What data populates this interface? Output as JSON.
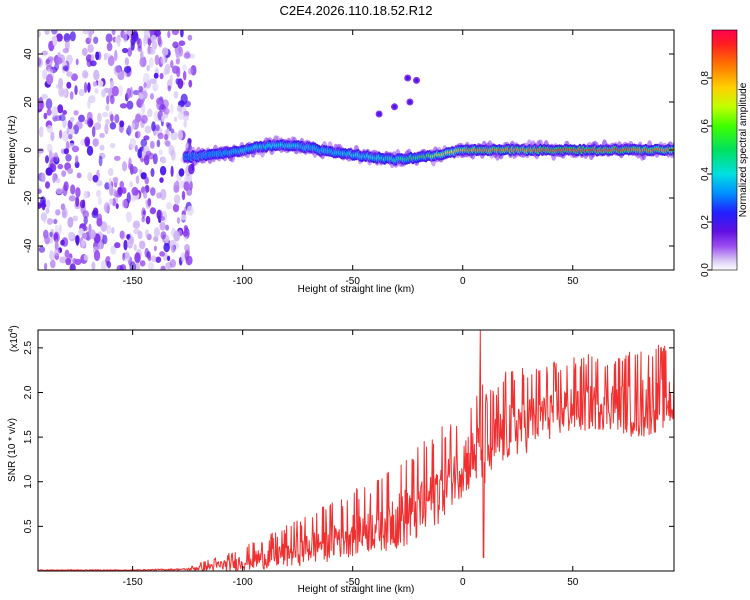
{
  "title": "C2E4.2026.110.18.52.R12",
  "chart_data": [
    {
      "id": "spectrogram",
      "type": "heatmap",
      "xlabel": "Height of straight line (km)",
      "ylabel": "Frequency (Hz)",
      "xlim": [
        -193,
        96
      ],
      "ylim": [
        -50,
        50
      ],
      "xticks": [
        -150,
        -100,
        -50,
        0,
        50
      ],
      "yticks": [
        -40,
        -20,
        0,
        20,
        40
      ],
      "noise_region_x": [
        -193,
        -125
      ],
      "main_signal": {
        "x": [
          -126,
          -115,
          -105,
          -95,
          -85,
          -78,
          -70,
          -60,
          -50,
          -40,
          -30,
          -20,
          -10,
          0,
          10,
          20,
          30,
          40,
          50,
          60,
          70,
          80,
          90,
          96
        ],
        "freq": [
          -3,
          -2,
          -1,
          1,
          2,
          2,
          1,
          -1,
          -2,
          -3,
          -4,
          -3,
          -2,
          0,
          0,
          0,
          0,
          0,
          0,
          0,
          0,
          0,
          0,
          0
        ],
        "amplitude": [
          0.25,
          0.3,
          0.35,
          0.4,
          0.4,
          0.4,
          0.35,
          0.35,
          0.4,
          0.4,
          0.45,
          0.55,
          0.7,
          0.8,
          0.85,
          0.85,
          0.85,
          0.9,
          0.9,
          0.9,
          0.9,
          0.85,
          0.85,
          0.8
        ]
      },
      "secondary_blobs": [
        {
          "x": -38,
          "freq": 15
        },
        {
          "x": -31,
          "freq": 18
        },
        {
          "x": -24,
          "freq": 20
        },
        {
          "x": -21,
          "freq": 29
        },
        {
          "x": -25,
          "freq": 30
        }
      ],
      "colorbar": {
        "label": "Normalized spectral amplitude",
        "range": [
          0.0,
          1.0
        ],
        "ticks": [
          "0.0",
          "0.2",
          "0.4",
          "0.6",
          "0.8"
        ],
        "tick_values": [
          0.0,
          0.2,
          0.4,
          0.6,
          0.8
        ]
      }
    },
    {
      "id": "snr",
      "type": "line",
      "xlabel": "Height of straight line (km)",
      "ylabel": "SNR (10 * v/v)",
      "multiplier": "(x10",
      "multiplier_exp": "4",
      "multiplier_close": ")",
      "xlim": [
        -193,
        96
      ],
      "ylim": [
        0,
        2.7
      ],
      "xticks": [
        -150,
        -100,
        -50,
        0,
        50
      ],
      "yticks": [
        "0.5",
        "1.0",
        "1.5",
        "2.0",
        "2.5"
      ],
      "ytick_values": [
        0.5,
        1.0,
        1.5,
        2.0,
        2.5
      ],
      "series": [
        {
          "name": "SNR",
          "color": "#f03030",
          "x": [
            -193,
            -150,
            -125,
            -115,
            -105,
            -95,
            -85,
            -75,
            -65,
            -55,
            -45,
            -35,
            -25,
            -18,
            -10,
            -5,
            0,
            5,
            8,
            10,
            15,
            20,
            30,
            40,
            50,
            60,
            70,
            80,
            85,
            90,
            96
          ],
          "mean": [
            0.01,
            0.01,
            0.02,
            0.05,
            0.08,
            0.13,
            0.18,
            0.25,
            0.32,
            0.4,
            0.48,
            0.55,
            0.65,
            0.75,
            0.95,
            1.1,
            1.2,
            1.3,
            1.4,
            1.3,
            1.45,
            1.6,
            1.7,
            1.8,
            1.85,
            1.9,
            1.9,
            1.85,
            1.9,
            1.95,
            1.9
          ],
          "spread": [
            0.005,
            0.005,
            0.01,
            0.04,
            0.06,
            0.09,
            0.12,
            0.15,
            0.18,
            0.2,
            0.22,
            0.25,
            0.3,
            0.32,
            0.3,
            0.28,
            0.28,
            0.3,
            0.35,
            0.35,
            0.3,
            0.3,
            0.28,
            0.25,
            0.25,
            0.25,
            0.25,
            0.3,
            0.3,
            0.28,
            0.25
          ],
          "peak": {
            "x": 8,
            "y": 2.7
          },
          "dip": {
            "x": 9.5,
            "y": 0.15
          }
        }
      ]
    }
  ]
}
